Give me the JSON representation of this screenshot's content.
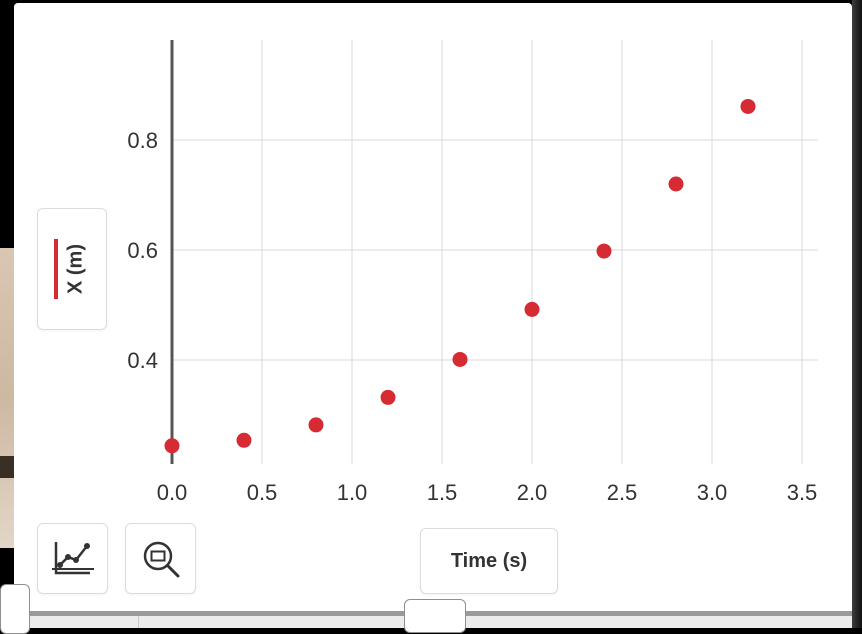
{
  "chart_data": {
    "type": "scatter",
    "title": "",
    "xlabel": "Time (s)",
    "ylabel": "X (m)",
    "xlim": [
      0.0,
      3.6
    ],
    "ylim": [
      0.22,
      0.98
    ],
    "x_ticks": [
      "0.0",
      "0.5",
      "1.0",
      "1.5",
      "2.0",
      "2.5",
      "3.0",
      "3.5"
    ],
    "x_tick_values": [
      0.0,
      0.5,
      1.0,
      1.5,
      2.0,
      2.5,
      3.0,
      3.5
    ],
    "y_ticks": [
      "0.4",
      "0.6",
      "0.8"
    ],
    "y_tick_values": [
      0.4,
      0.6,
      0.8
    ],
    "grid": true,
    "series": [
      {
        "color": "#d62b32",
        "points": [
          {
            "x": 0.0,
            "y": 0.244
          },
          {
            "x": 0.4,
            "y": 0.254
          },
          {
            "x": 0.8,
            "y": 0.282
          },
          {
            "x": 1.2,
            "y": 0.332
          },
          {
            "x": 1.6,
            "y": 0.401
          },
          {
            "x": 2.0,
            "y": 0.492
          },
          {
            "x": 2.4,
            "y": 0.598
          },
          {
            "x": 2.8,
            "y": 0.72
          },
          {
            "x": 3.2,
            "y": 0.861
          }
        ]
      }
    ]
  },
  "toolbar": {
    "autoscale_icon": "graph-autoscale-icon",
    "zoom_icon": "zoom-selection-icon"
  },
  "colors": {
    "series": "#d62b32",
    "grid": "#d9d9d9",
    "axis": "#555555"
  }
}
